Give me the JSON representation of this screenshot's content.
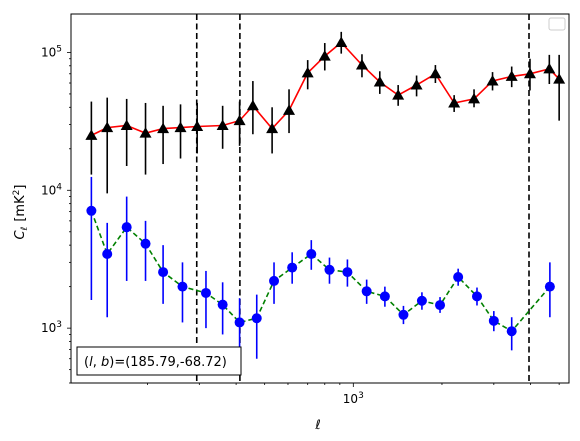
{
  "chart_data": {
    "type": "line",
    "xlabel": "ℓ",
    "ylabel_main": "C",
    "ylabel_sub": "ℓ",
    "ylabel_unit": "[mK",
    "ylabel_unit_sup": "2",
    "ylabel_unit_end": "]",
    "xscale": "log",
    "yscale": "log",
    "xlim": [
      110,
      5400
    ],
    "ylim": [
      400,
      190000
    ],
    "x_tick_labels": [
      {
        "value": 1000,
        "base": "10",
        "exp": "3"
      }
    ],
    "y_tick_labels": [
      {
        "value": 1000,
        "base": "10",
        "exp": "3"
      },
      {
        "value": 10000,
        "base": "10",
        "exp": "4"
      },
      {
        "value": 100000,
        "base": "10",
        "exp": "5"
      }
    ],
    "vlines": [
      {
        "x": 294,
        "style": "dashed",
        "color": "#000000"
      },
      {
        "x": 412,
        "style": "dashed",
        "color": "#000000"
      },
      {
        "x": 3950,
        "style": "dashed",
        "color": "#000000"
      }
    ],
    "series": [
      {
        "marker": "triangle",
        "color": "#000000",
        "line_color": "#ff0000",
        "line_style": "solid",
        "points": [
          {
            "x": 129,
            "y": 25000,
            "lo": 13000,
            "hi": 44000
          },
          {
            "x": 146,
            "y": 28500,
            "lo": 9500,
            "hi": 47000
          },
          {
            "x": 170,
            "y": 29500,
            "lo": 15000,
            "hi": 46000
          },
          {
            "x": 197,
            "y": 26000,
            "lo": 13000,
            "hi": 43000
          },
          {
            "x": 226,
            "y": 28000,
            "lo": 15500,
            "hi": 41000
          },
          {
            "x": 259,
            "y": 28500,
            "lo": 17000,
            "hi": 42000
          },
          {
            "x": 295,
            "y": 29000,
            "lo": 18500,
            "hi": 43000
          },
          {
            "x": 360,
            "y": 29500,
            "lo": 20000,
            "hi": 41000
          },
          {
            "x": 411,
            "y": 32000,
            "lo": 21000,
            "hi": 44000
          },
          {
            "x": 456,
            "y": 41000,
            "lo": 25500,
            "hi": 62000
          },
          {
            "x": 530,
            "y": 28000,
            "lo": 18500,
            "hi": 40000
          },
          {
            "x": 605,
            "y": 38000,
            "lo": 26000,
            "hi": 54000
          },
          {
            "x": 700,
            "y": 71000,
            "lo": 54000,
            "hi": 88000
          },
          {
            "x": 800,
            "y": 94000,
            "lo": 74000,
            "hi": 117000
          },
          {
            "x": 910,
            "y": 118000,
            "lo": 98000,
            "hi": 141000
          },
          {
            "x": 1070,
            "y": 81000,
            "lo": 66000,
            "hi": 97000
          },
          {
            "x": 1230,
            "y": 61000,
            "lo": 50000,
            "hi": 73000
          },
          {
            "x": 1420,
            "y": 49000,
            "lo": 41000,
            "hi": 58000
          },
          {
            "x": 1640,
            "y": 58000,
            "lo": 48000,
            "hi": 68000
          },
          {
            "x": 1900,
            "y": 70000,
            "lo": 60000,
            "hi": 81000
          },
          {
            "x": 2200,
            "y": 43000,
            "lo": 37000,
            "hi": 49000
          },
          {
            "x": 2570,
            "y": 46000,
            "lo": 40000,
            "hi": 54000
          },
          {
            "x": 2970,
            "y": 62000,
            "lo": 53000,
            "hi": 72000
          },
          {
            "x": 3450,
            "y": 67000,
            "lo": 56000,
            "hi": 79000
          },
          {
            "x": 3980,
            "y": 70000,
            "lo": 53000,
            "hi": 90000
          },
          {
            "x": 4630,
            "y": 76000,
            "lo": 59000,
            "hi": 96000
          },
          {
            "x": 5000,
            "y": 64000,
            "lo": 32000,
            "hi": 96000
          }
        ]
      },
      {
        "marker": "circle",
        "color": "#0000ff",
        "line_color": "#008000",
        "line_style": "dashed",
        "points": [
          {
            "x": 129,
            "y": 7100,
            "lo": 1600,
            "hi": 12500
          },
          {
            "x": 146,
            "y": 3450,
            "lo": 1200,
            "hi": 5800
          },
          {
            "x": 170,
            "y": 5400,
            "lo": 2200,
            "hi": 9000
          },
          {
            "x": 197,
            "y": 4100,
            "lo": 2200,
            "hi": 6000
          },
          {
            "x": 226,
            "y": 2550,
            "lo": 1500,
            "hi": 4000
          },
          {
            "x": 263,
            "y": 2000,
            "lo": 1100,
            "hi": 3000
          },
          {
            "x": 316,
            "y": 1800,
            "lo": 1000,
            "hi": 2600
          },
          {
            "x": 360,
            "y": 1480,
            "lo": 900,
            "hi": 2150
          },
          {
            "x": 411,
            "y": 1100,
            "lo": 540,
            "hi": 1650
          },
          {
            "x": 470,
            "y": 1180,
            "lo": 600,
            "hi": 1750
          },
          {
            "x": 538,
            "y": 2200,
            "lo": 1500,
            "hi": 3000
          },
          {
            "x": 620,
            "y": 2750,
            "lo": 2100,
            "hi": 3550
          },
          {
            "x": 720,
            "y": 3450,
            "lo": 2650,
            "hi": 4350
          },
          {
            "x": 830,
            "y": 2650,
            "lo": 2100,
            "hi": 3250
          },
          {
            "x": 955,
            "y": 2550,
            "lo": 2000,
            "hi": 3150
          },
          {
            "x": 1110,
            "y": 1850,
            "lo": 1500,
            "hi": 2250
          },
          {
            "x": 1280,
            "y": 1700,
            "lo": 1430,
            "hi": 2000
          },
          {
            "x": 1480,
            "y": 1250,
            "lo": 1070,
            "hi": 1450
          },
          {
            "x": 1710,
            "y": 1580,
            "lo": 1360,
            "hi": 1820
          },
          {
            "x": 1970,
            "y": 1470,
            "lo": 1290,
            "hi": 1680
          },
          {
            "x": 2270,
            "y": 2350,
            "lo": 2030,
            "hi": 2700
          },
          {
            "x": 2630,
            "y": 1700,
            "lo": 1460,
            "hi": 1970
          },
          {
            "x": 3000,
            "y": 1130,
            "lo": 950,
            "hi": 1330
          },
          {
            "x": 3450,
            "y": 950,
            "lo": 690,
            "hi": 1200
          },
          {
            "x": 4650,
            "y": 2000,
            "lo": 1200,
            "hi": 3000
          }
        ]
      }
    ],
    "annotation": "(l, b)=(185.79,-68.72)",
    "annotation_l": "l",
    "annotation_b": "b",
    "annotation_coords": "=(185.79,-68.72)",
    "legend": "empty",
    "legend_placement": "top-right",
    "grid": false
  }
}
